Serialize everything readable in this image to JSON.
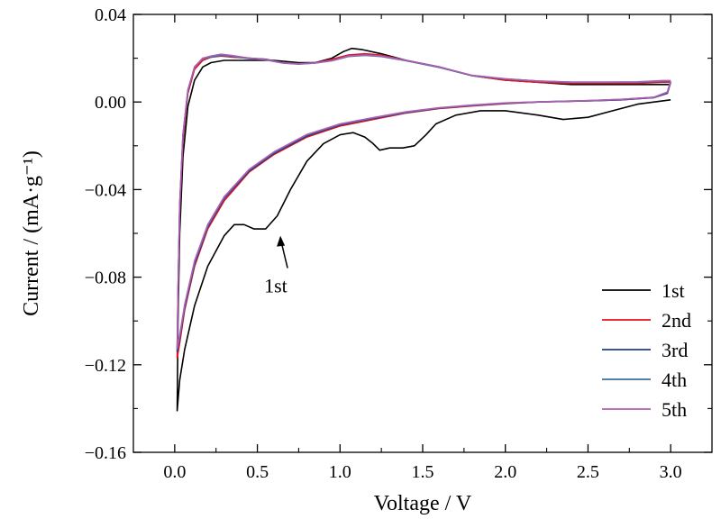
{
  "chart_data": {
    "type": "line",
    "title": "",
    "xlabel": "Voltage / V",
    "ylabel": "Current / (mA·g⁻¹)",
    "xlim": [
      -0.25,
      3.25
    ],
    "ylim": [
      -0.16,
      0.04
    ],
    "x_ticks": [
      0.0,
      0.5,
      1.0,
      1.5,
      2.0,
      2.5,
      3.0
    ],
    "x_tick_labels": [
      "0.0",
      "0.5",
      "1.0",
      "1.5",
      "2.0",
      "2.5",
      "3.0"
    ],
    "y_ticks": [
      0.04,
      0.0,
      -0.04,
      -0.08,
      -0.12,
      -0.16
    ],
    "y_tick_labels": [
      "0.04",
      "0.00",
      "−0.04",
      "−0.08",
      "−0.12",
      "−0.16"
    ],
    "grid": false,
    "legend_position": "bottom-right",
    "annotations": [
      {
        "text": "1st",
        "arrow_to": [
          0.65,
          -0.059
        ]
      }
    ],
    "series": [
      {
        "name": "1st",
        "color": "#000000",
        "cathodic": [
          [
            3.0,
            0.001
          ],
          [
            2.8,
            -0.001
          ],
          [
            2.65,
            -0.004
          ],
          [
            2.5,
            -0.007
          ],
          [
            2.35,
            -0.008
          ],
          [
            2.2,
            -0.006
          ],
          [
            2.0,
            -0.004
          ],
          [
            1.85,
            -0.004
          ],
          [
            1.7,
            -0.006
          ],
          [
            1.58,
            -0.01
          ],
          [
            1.52,
            -0.015
          ],
          [
            1.45,
            -0.02
          ],
          [
            1.38,
            -0.021
          ],
          [
            1.3,
            -0.021
          ],
          [
            1.24,
            -0.022
          ],
          [
            1.2,
            -0.019
          ],
          [
            1.15,
            -0.016
          ],
          [
            1.08,
            -0.014
          ],
          [
            1.0,
            -0.015
          ],
          [
            0.9,
            -0.019
          ],
          [
            0.8,
            -0.027
          ],
          [
            0.7,
            -0.04
          ],
          [
            0.62,
            -0.052
          ],
          [
            0.55,
            -0.058
          ],
          [
            0.48,
            -0.058
          ],
          [
            0.42,
            -0.056
          ],
          [
            0.36,
            -0.056
          ],
          [
            0.3,
            -0.061
          ],
          [
            0.2,
            -0.075
          ],
          [
            0.12,
            -0.093
          ],
          [
            0.06,
            -0.113
          ],
          [
            0.03,
            -0.127
          ],
          [
            0.015,
            -0.141
          ]
        ],
        "anodic": [
          [
            0.015,
            -0.141
          ],
          [
            0.02,
            -0.1
          ],
          [
            0.03,
            -0.06
          ],
          [
            0.05,
            -0.025
          ],
          [
            0.08,
            -0.002
          ],
          [
            0.12,
            0.01
          ],
          [
            0.17,
            0.016
          ],
          [
            0.22,
            0.018
          ],
          [
            0.3,
            0.019
          ],
          [
            0.45,
            0.019
          ],
          [
            0.6,
            0.019
          ],
          [
            0.75,
            0.018
          ],
          [
            0.85,
            0.018
          ],
          [
            0.95,
            0.02
          ],
          [
            1.02,
            0.023
          ],
          [
            1.07,
            0.0245
          ],
          [
            1.13,
            0.024
          ],
          [
            1.25,
            0.022
          ],
          [
            1.4,
            0.019
          ],
          [
            1.6,
            0.016
          ],
          [
            1.8,
            0.012
          ],
          [
            2.0,
            0.01
          ],
          [
            2.2,
            0.009
          ],
          [
            2.4,
            0.008
          ],
          [
            2.6,
            0.008
          ],
          [
            2.8,
            0.008
          ],
          [
            2.95,
            0.008
          ],
          [
            3.0,
            0.008
          ]
        ]
      },
      {
        "name": "2nd",
        "color": "#e8111b",
        "cathodic": [
          [
            3.0,
            0.009
          ],
          [
            2.98,
            0.004
          ],
          [
            2.9,
            0.002
          ],
          [
            2.7,
            0.001
          ],
          [
            2.5,
            0.0005
          ],
          [
            2.2,
            0.0
          ],
          [
            2.0,
            -0.0008
          ],
          [
            1.8,
            -0.0018
          ],
          [
            1.6,
            -0.003
          ],
          [
            1.4,
            -0.005
          ],
          [
            1.2,
            -0.008
          ],
          [
            1.0,
            -0.011
          ],
          [
            0.8,
            -0.016
          ],
          [
            0.6,
            -0.024
          ],
          [
            0.45,
            -0.032
          ],
          [
            0.3,
            -0.045
          ],
          [
            0.2,
            -0.058
          ],
          [
            0.12,
            -0.075
          ],
          [
            0.06,
            -0.095
          ],
          [
            0.03,
            -0.11
          ],
          [
            0.015,
            -0.117
          ]
        ],
        "anodic": [
          [
            0.015,
            -0.117
          ],
          [
            0.02,
            -0.09
          ],
          [
            0.03,
            -0.05
          ],
          [
            0.05,
            -0.018
          ],
          [
            0.08,
            0.004
          ],
          [
            0.12,
            0.015
          ],
          [
            0.17,
            0.019
          ],
          [
            0.22,
            0.0205
          ],
          [
            0.28,
            0.021
          ],
          [
            0.35,
            0.0205
          ],
          [
            0.45,
            0.02
          ],
          [
            0.55,
            0.0195
          ],
          [
            0.65,
            0.018
          ],
          [
            0.75,
            0.0175
          ],
          [
            0.85,
            0.018
          ],
          [
            0.95,
            0.0195
          ],
          [
            1.05,
            0.0215
          ],
          [
            1.15,
            0.022
          ],
          [
            1.25,
            0.0215
          ],
          [
            1.4,
            0.019
          ],
          [
            1.6,
            0.016
          ],
          [
            1.8,
            0.012
          ],
          [
            2.0,
            0.01
          ],
          [
            2.2,
            0.009
          ],
          [
            2.4,
            0.0085
          ],
          [
            2.6,
            0.0085
          ],
          [
            2.8,
            0.0085
          ],
          [
            2.95,
            0.009
          ],
          [
            3.0,
            0.009
          ]
        ]
      },
      {
        "name": "3rd",
        "color": "#1f3c8c",
        "cathodic": [
          [
            3.0,
            0.009
          ],
          [
            2.98,
            0.004
          ],
          [
            2.9,
            0.002
          ],
          [
            2.7,
            0.001
          ],
          [
            2.5,
            0.0005
          ],
          [
            2.2,
            0.0
          ],
          [
            2.0,
            -0.0006
          ],
          [
            1.8,
            -0.0016
          ],
          [
            1.6,
            -0.0028
          ],
          [
            1.4,
            -0.0048
          ],
          [
            1.2,
            -0.0075
          ],
          [
            1.0,
            -0.0105
          ],
          [
            0.8,
            -0.0155
          ],
          [
            0.6,
            -0.0235
          ],
          [
            0.45,
            -0.0315
          ],
          [
            0.3,
            -0.044
          ],
          [
            0.2,
            -0.057
          ],
          [
            0.12,
            -0.074
          ],
          [
            0.06,
            -0.094
          ],
          [
            0.03,
            -0.108
          ],
          [
            0.015,
            -0.114
          ]
        ],
        "anodic": [
          [
            0.015,
            -0.114
          ],
          [
            0.02,
            -0.088
          ],
          [
            0.03,
            -0.048
          ],
          [
            0.05,
            -0.016
          ],
          [
            0.08,
            0.005
          ],
          [
            0.12,
            0.016
          ],
          [
            0.17,
            0.02
          ],
          [
            0.22,
            0.0205
          ],
          [
            0.28,
            0.0215
          ],
          [
            0.35,
            0.021
          ],
          [
            0.45,
            0.02
          ],
          [
            0.55,
            0.0195
          ],
          [
            0.65,
            0.018
          ],
          [
            0.75,
            0.0175
          ],
          [
            0.85,
            0.018
          ],
          [
            0.95,
            0.019
          ],
          [
            1.05,
            0.021
          ],
          [
            1.15,
            0.0215
          ],
          [
            1.25,
            0.021
          ],
          [
            1.4,
            0.019
          ],
          [
            1.6,
            0.016
          ],
          [
            1.8,
            0.012
          ],
          [
            2.0,
            0.0105
          ],
          [
            2.2,
            0.0095
          ],
          [
            2.4,
            0.009
          ],
          [
            2.6,
            0.009
          ],
          [
            2.8,
            0.009
          ],
          [
            2.95,
            0.0095
          ],
          [
            3.0,
            0.0095
          ]
        ]
      },
      {
        "name": "4th",
        "color": "#3d6e9e",
        "cathodic": [
          [
            3.0,
            0.0095
          ],
          [
            2.98,
            0.0045
          ],
          [
            2.9,
            0.0022
          ],
          [
            2.7,
            0.0012
          ],
          [
            2.5,
            0.0006
          ],
          [
            2.2,
            0.0001
          ],
          [
            2.0,
            -0.0005
          ],
          [
            1.8,
            -0.0015
          ],
          [
            1.6,
            -0.0027
          ],
          [
            1.4,
            -0.0046
          ],
          [
            1.2,
            -0.0073
          ],
          [
            1.0,
            -0.0102
          ],
          [
            0.8,
            -0.015
          ],
          [
            0.6,
            -0.023
          ],
          [
            0.45,
            -0.031
          ],
          [
            0.3,
            -0.0435
          ],
          [
            0.2,
            -0.0565
          ],
          [
            0.12,
            -0.073
          ],
          [
            0.06,
            -0.093
          ],
          [
            0.03,
            -0.107
          ],
          [
            0.015,
            -0.113
          ]
        ],
        "anodic": [
          [
            0.015,
            -0.113
          ],
          [
            0.02,
            -0.087
          ],
          [
            0.03,
            -0.047
          ],
          [
            0.05,
            -0.015
          ],
          [
            0.08,
            0.0055
          ],
          [
            0.12,
            0.016
          ],
          [
            0.17,
            0.0198
          ],
          [
            0.22,
            0.0205
          ],
          [
            0.28,
            0.0212
          ],
          [
            0.35,
            0.0208
          ],
          [
            0.45,
            0.0198
          ],
          [
            0.55,
            0.0192
          ],
          [
            0.65,
            0.0178
          ],
          [
            0.75,
            0.0173
          ],
          [
            0.85,
            0.0178
          ],
          [
            0.95,
            0.0188
          ],
          [
            1.05,
            0.0208
          ],
          [
            1.15,
            0.0213
          ],
          [
            1.25,
            0.0208
          ],
          [
            1.4,
            0.0188
          ],
          [
            1.6,
            0.0158
          ],
          [
            1.8,
            0.012
          ],
          [
            2.0,
            0.0105
          ],
          [
            2.2,
            0.0095
          ],
          [
            2.4,
            0.009
          ],
          [
            2.6,
            0.009
          ],
          [
            2.8,
            0.009
          ],
          [
            2.95,
            0.0095
          ],
          [
            3.0,
            0.0095
          ]
        ]
      },
      {
        "name": "5th",
        "color": "#b05fb0",
        "cathodic": [
          [
            3.0,
            0.0095
          ],
          [
            2.98,
            0.0045
          ],
          [
            2.9,
            0.0022
          ],
          [
            2.7,
            0.0012
          ],
          [
            2.5,
            0.0006
          ],
          [
            2.2,
            0.0001
          ],
          [
            2.0,
            -0.0004
          ],
          [
            1.8,
            -0.0014
          ],
          [
            1.6,
            -0.0026
          ],
          [
            1.4,
            -0.0045
          ],
          [
            1.2,
            -0.0071
          ],
          [
            1.0,
            -0.01
          ],
          [
            0.8,
            -0.0148
          ],
          [
            0.6,
            -0.0228
          ],
          [
            0.45,
            -0.0308
          ],
          [
            0.3,
            -0.0432
          ],
          [
            0.2,
            -0.056
          ],
          [
            0.12,
            -0.0725
          ],
          [
            0.06,
            -0.0925
          ],
          [
            0.03,
            -0.1065
          ],
          [
            0.015,
            -0.1125
          ]
        ],
        "anodic": [
          [
            0.015,
            -0.1125
          ],
          [
            0.02,
            -0.0865
          ],
          [
            0.03,
            -0.0465
          ],
          [
            0.05,
            -0.0148
          ],
          [
            0.08,
            0.0055
          ],
          [
            0.12,
            0.016
          ],
          [
            0.17,
            0.02
          ],
          [
            0.22,
            0.021
          ],
          [
            0.28,
            0.0218
          ],
          [
            0.35,
            0.0212
          ],
          [
            0.45,
            0.02
          ],
          [
            0.55,
            0.0193
          ],
          [
            0.65,
            0.0179
          ],
          [
            0.75,
            0.0174
          ],
          [
            0.85,
            0.0178
          ],
          [
            0.95,
            0.0189
          ],
          [
            1.05,
            0.021
          ],
          [
            1.15,
            0.0215
          ],
          [
            1.25,
            0.021
          ],
          [
            1.4,
            0.019
          ],
          [
            1.6,
            0.016
          ],
          [
            1.8,
            0.0122
          ],
          [
            2.0,
            0.0106
          ],
          [
            2.2,
            0.0096
          ],
          [
            2.4,
            0.0091
          ],
          [
            2.6,
            0.0091
          ],
          [
            2.8,
            0.0092
          ],
          [
            2.95,
            0.0098
          ],
          [
            3.0,
            0.0098
          ]
        ]
      }
    ]
  }
}
